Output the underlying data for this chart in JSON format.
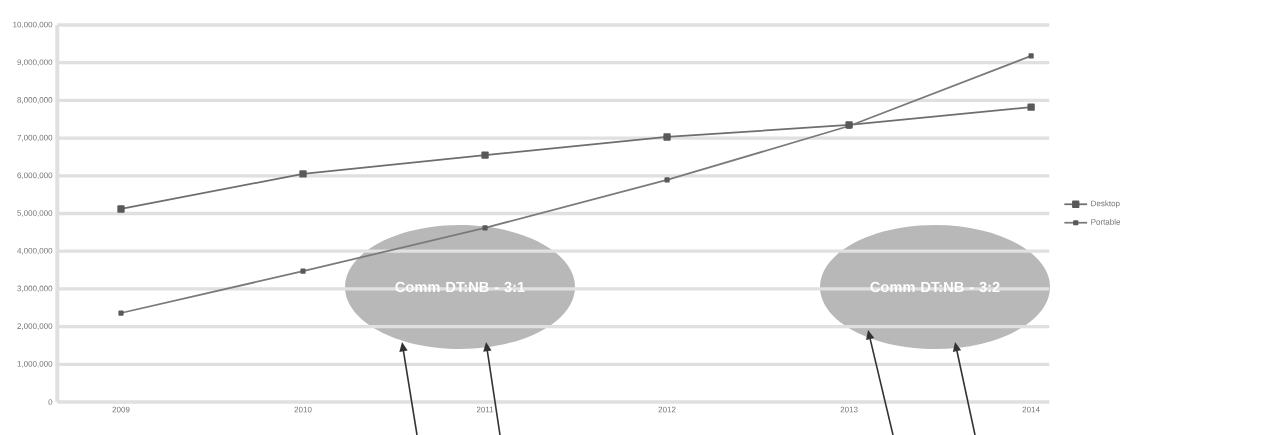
{
  "chart_data": {
    "type": "line",
    "categories": [
      "2009",
      "2010",
      "2011",
      "2012",
      "2013",
      "2014"
    ],
    "series": [
      {
        "name": "Desktop",
        "color": "#6e6e6e",
        "values": [
          5120000,
          6050000,
          6550000,
          7030000,
          7350000,
          7820000
        ]
      },
      {
        "name": "Portable",
        "color": "#7a7a7a",
        "values": [
          2360000,
          3470000,
          4620000,
          5890000,
          7320000,
          9180000
        ]
      }
    ],
    "ylim": [
      0,
      10000000
    ],
    "yticks": [
      0,
      {
        "value": 1000000,
        "label": "1,000,000"
      },
      {
        "value": 2000000,
        "label": "2,000,000"
      },
      {
        "value": 3000000,
        "label": "3,000,000"
      },
      {
        "value": 4000000,
        "label": "4,000,000"
      },
      {
        "value": 5000000,
        "label": "5,000,000"
      },
      {
        "value": 6000000,
        "label": "6,000,000"
      },
      {
        "value": 7000000,
        "label": "7,000,000"
      },
      {
        "value": 8000000,
        "label": "8,000,000"
      },
      {
        "value": 9000000,
        "label": "9,000,000"
      },
      {
        "value": 10000000,
        "label": "10,000,000"
      }
    ],
    "grid": "y",
    "legend": "right",
    "marker": "square",
    "line_style": "solid",
    "annotations": [
      "Comm DT:NB - 3:1",
      "Comm DT:NB - 3:2"
    ]
  }
}
